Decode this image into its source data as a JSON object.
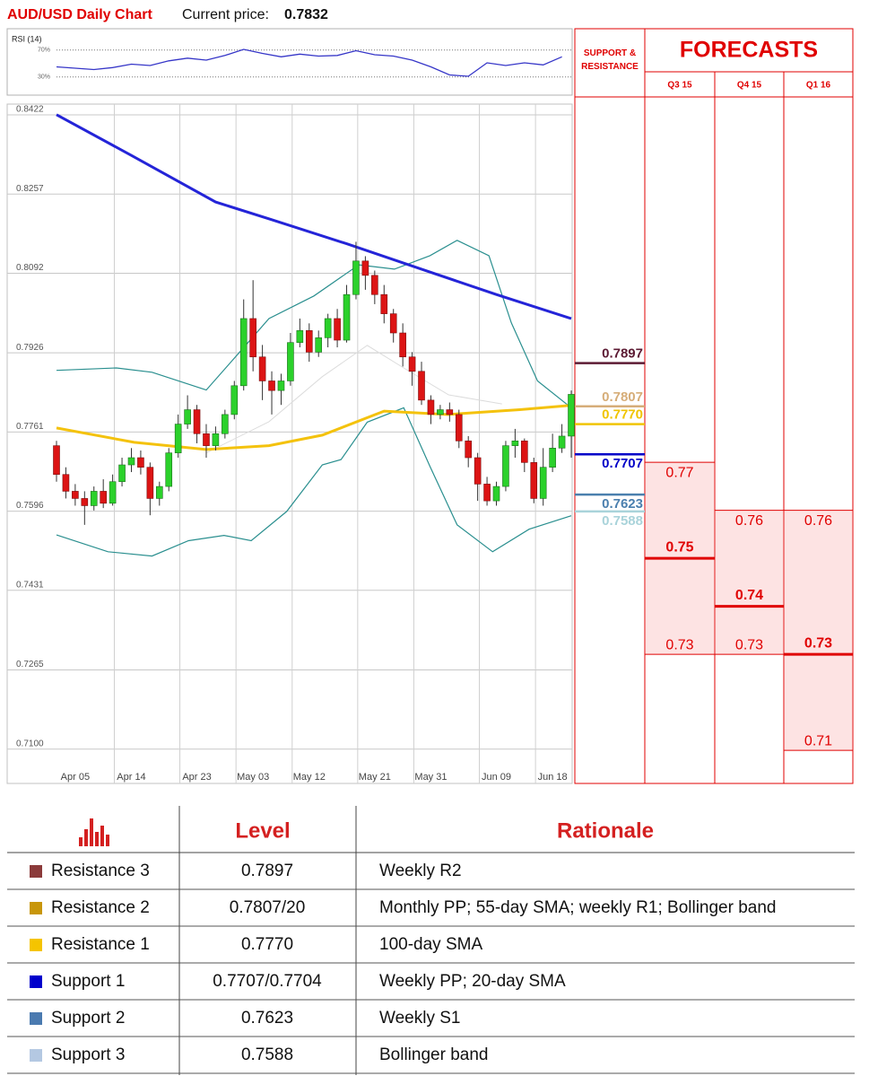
{
  "header": {
    "title": "AUD/USD Daily Chart",
    "price_label": "Current price:",
    "price": 0.7832
  },
  "chart_data": [
    {
      "type": "line",
      "title": "RSI (14)",
      "x": [
        0,
        2,
        4,
        6,
        8,
        10,
        12,
        14,
        16,
        18,
        20,
        22,
        24,
        26,
        28,
        30,
        32,
        34,
        36,
        38,
        40,
        42,
        44,
        46,
        48,
        50,
        52,
        54
      ],
      "values": [
        45,
        43,
        41,
        44,
        49,
        47,
        54,
        58,
        55,
        62,
        71,
        65,
        60,
        64,
        61,
        62,
        69,
        63,
        61,
        55,
        45,
        33,
        31,
        51,
        47,
        51,
        48,
        60
      ],
      "color": "#3636c8",
      "xlim": [
        0,
        55
      ],
      "ylim": [
        7,
        91
      ],
      "yticks": [
        {
          "value": 70,
          "label": "70%"
        },
        {
          "value": 30,
          "label": "30%"
        }
      ]
    },
    {
      "type": "candlestick",
      "categories": [
        null,
        null,
        "Apr 05",
        null,
        null,
        null,
        null,
        null,
        "Apr 14",
        null,
        null,
        null,
        null,
        null,
        null,
        "Apr 23",
        null,
        null,
        null,
        null,
        null,
        "May 03",
        null,
        null,
        null,
        null,
        null,
        "May 12",
        null,
        null,
        null,
        null,
        null,
        null,
        "May 21",
        null,
        null,
        null,
        null,
        null,
        "May 31",
        null,
        null,
        null,
        null,
        null,
        null,
        "Jun 09",
        null,
        null,
        null,
        null,
        null,
        "Jun 18",
        null,
        null
      ],
      "open": [
        0.7725,
        0.7665,
        0.763,
        0.7615,
        0.76,
        0.763,
        0.7605,
        0.765,
        0.7685,
        0.77,
        0.768,
        0.7615,
        0.764,
        0.771,
        0.777,
        0.78,
        0.775,
        0.7725,
        0.775,
        0.779,
        0.785,
        0.799,
        0.791,
        0.786,
        0.784,
        0.786,
        0.794,
        0.7965,
        0.792,
        0.795,
        0.799,
        0.7945,
        0.804,
        0.811,
        0.808,
        0.804,
        0.8,
        0.796,
        0.791,
        0.788,
        0.782,
        0.779,
        0.78,
        0.779,
        0.7735,
        0.77,
        0.7645,
        0.761,
        0.764,
        0.7725,
        0.7735,
        0.769,
        0.7615,
        0.768,
        0.772,
        0.7745
      ],
      "high": [
        0.7735,
        0.768,
        0.7645,
        0.763,
        0.764,
        0.7655,
        0.7665,
        0.77,
        0.772,
        0.7715,
        0.769,
        0.765,
        0.772,
        0.779,
        0.783,
        0.781,
        0.777,
        0.7765,
        0.78,
        0.786,
        0.803,
        0.807,
        0.7935,
        0.788,
        0.7875,
        0.796,
        0.799,
        0.798,
        0.7965,
        0.8,
        0.801,
        0.806,
        0.815,
        0.812,
        0.809,
        0.806,
        0.801,
        0.798,
        0.792,
        0.79,
        0.783,
        0.781,
        0.7815,
        0.78,
        0.7745,
        0.771,
        0.766,
        0.765,
        0.7735,
        0.776,
        0.774,
        0.77,
        0.772,
        0.775,
        0.777,
        0.784
      ],
      "low": [
        0.765,
        0.7615,
        0.76,
        0.756,
        0.759,
        0.7595,
        0.76,
        0.764,
        0.767,
        0.7665,
        0.758,
        0.76,
        0.763,
        0.77,
        0.776,
        0.773,
        0.77,
        0.7715,
        0.774,
        0.778,
        0.784,
        0.788,
        0.782,
        0.779,
        0.781,
        0.785,
        0.793,
        0.79,
        0.791,
        0.793,
        0.793,
        0.794,
        0.803,
        0.805,
        0.802,
        0.798,
        0.794,
        0.789,
        0.785,
        0.781,
        0.777,
        0.778,
        0.7775,
        0.772,
        0.768,
        0.761,
        0.76,
        0.76,
        0.763,
        0.77,
        0.767,
        0.7605,
        0.76,
        0.767,
        0.771,
        0.77
      ],
      "close": [
        0.7665,
        0.763,
        0.7615,
        0.76,
        0.763,
        0.7605,
        0.765,
        0.7685,
        0.77,
        0.768,
        0.7615,
        0.764,
        0.771,
        0.777,
        0.78,
        0.775,
        0.7725,
        0.775,
        0.779,
        0.785,
        0.799,
        0.791,
        0.786,
        0.784,
        0.786,
        0.794,
        0.7965,
        0.792,
        0.795,
        0.799,
        0.7945,
        0.804,
        0.811,
        0.808,
        0.804,
        0.8,
        0.796,
        0.791,
        0.788,
        0.782,
        0.779,
        0.78,
        0.779,
        0.7735,
        0.77,
        0.7645,
        0.761,
        0.764,
        0.7725,
        0.7735,
        0.769,
        0.7615,
        0.768,
        0.772,
        0.7745,
        0.7832
      ],
      "up_color": "#2bd12b",
      "down_color": "#dc1414",
      "ylim": [
        0.7021,
        0.8437
      ],
      "yticks": [
        0.8422,
        0.8257,
        0.8092,
        0.7926,
        0.7761,
        0.7596,
        0.7431,
        0.7265,
        {
          "value": 0.71,
          "label": "0.7100"
        }
      ],
      "grid": true,
      "overlays": [
        {
          "x": [
            16,
            22.7,
            28.4,
            33.2,
            37.1,
            41.9,
            47.6
          ],
          "values": [
            0.771,
            0.7775,
            0.7869,
            0.7934,
            0.7887,
            0.7831,
            0.7812
          ],
          "color": "#dcdcdc",
          "width": 1
        },
        {
          "x": [
            0,
            6.4,
            10.2,
            16,
            19.8,
            22.7,
            27.5,
            32.3,
            36.1,
            39.9,
            42.8,
            46.2,
            48.6,
            51.4,
            55
          ],
          "values": [
            0.7882,
            0.7887,
            0.7878,
            0.7841,
            0.7925,
            0.799,
            0.8037,
            0.8102,
            0.8093,
            0.8121,
            0.8153,
            0.8121,
            0.7981,
            0.786,
            0.7804
          ],
          "color": "#2a8f8f",
          "width": 1.2
        },
        {
          "x": [
            0,
            5.5,
            10.2,
            14.1,
            17.9,
            20.8,
            24.6,
            28.4,
            30.4,
            33.2,
            37.1,
            39.9,
            42.8,
            46.6,
            50.5,
            55
          ],
          "values": [
            0.7539,
            0.7504,
            0.7495,
            0.7527,
            0.7538,
            0.7527,
            0.7588,
            0.7685,
            0.7696,
            0.7774,
            0.7804,
            0.7682,
            0.756,
            0.7504,
            0.7551,
            0.7579
          ],
          "color": "#2a8f8f",
          "width": 1.2
        },
        {
          "x": [
            0,
            8,
            17,
            23,
            31,
            39,
            47,
            55
          ],
          "values": [
            0.8415,
            0.833,
            0.8233,
            0.8196,
            0.8146,
            0.8093,
            0.804,
            0.799
          ],
          "color": "#2424d8",
          "width": 3
        },
        {
          "x": [
            0,
            8.3,
            16,
            22.7,
            28.4,
            35,
            41.8,
            49.5,
            55
          ],
          "values": [
            0.7762,
            0.7732,
            0.7717,
            0.7725,
            0.7747,
            0.7797,
            0.779,
            0.78,
            0.7809
          ],
          "color": "#f4c20d",
          "width": 3
        }
      ],
      "levels": [
        {
          "value": 0.7897,
          "color": "#5c1a33"
        },
        {
          "value": 0.7807,
          "color": "#d6ad78"
        },
        {
          "value": 0.777,
          "label": "0.7770",
          "color": "#f0c400"
        },
        {
          "value": 0.7707,
          "color": "#0000c8"
        },
        {
          "value": 0.7623,
          "color": "#4a7fae"
        },
        {
          "value": 0.7588,
          "color": "#a9d3da"
        }
      ]
    },
    {
      "type": "forecast",
      "title": "FORECASTS",
      "level_title": "SUPPORT & RESISTANCE",
      "color": "#e00000",
      "fill": "#fde3e3",
      "ylim": [
        0.7031,
        0.8446
      ],
      "quarters": [
        {
          "name": "Q3 15",
          "high": 0.77,
          "median": 0.75,
          "low": 0.73
        },
        {
          "name": "Q4 15",
          "high": 0.76,
          "median": 0.74,
          "low": 0.73
        },
        {
          "name": "Q1 16",
          "high": 0.76,
          "median": 0.73,
          "low": 0.71
        }
      ]
    }
  ],
  "table": {
    "headers": [
      "Level",
      "Rationale"
    ],
    "rows": [
      {
        "color": "#8b3a3a",
        "name": "Resistance 3",
        "level": "0.7897",
        "rationale": "Weekly R2"
      },
      {
        "color": "#c8960a",
        "name": "Resistance 2",
        "level": "0.7807/20",
        "rationale": "Monthly PP; 55-day SMA; weekly R1; Bollinger band"
      },
      {
        "color": "#f5c400",
        "name": "Resistance 1",
        "level": "0.7770",
        "rationale": "100-day SMA"
      },
      {
        "color": "#0000cc",
        "name": "Support 1",
        "level": "0.7707/0.7704",
        "rationale": "Weekly PP; 20-day SMA"
      },
      {
        "color": "#4a7ab0",
        "name": "Support 2",
        "level": "0.7623",
        "rationale": "Weekly S1"
      },
      {
        "color": "#b4c8e2",
        "name": "Support 3",
        "level": "0.7588",
        "rationale": "Bollinger band"
      }
    ]
  }
}
